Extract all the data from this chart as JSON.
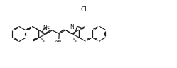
{
  "bg_color": "#ffffff",
  "line_color": "#1a1a1a",
  "line_width": 0.85,
  "text_color": "#1a1a1a",
  "figsize": [
    2.49,
    0.96
  ],
  "dpi": 100,
  "cl_label": "Cl⁻",
  "n_plus_label": "N⁺",
  "n_label": "N",
  "s_label": "S",
  "font_size": 5.5,
  "xlim": [
    0,
    10.5
  ],
  "ylim": [
    0.2,
    4.2
  ]
}
